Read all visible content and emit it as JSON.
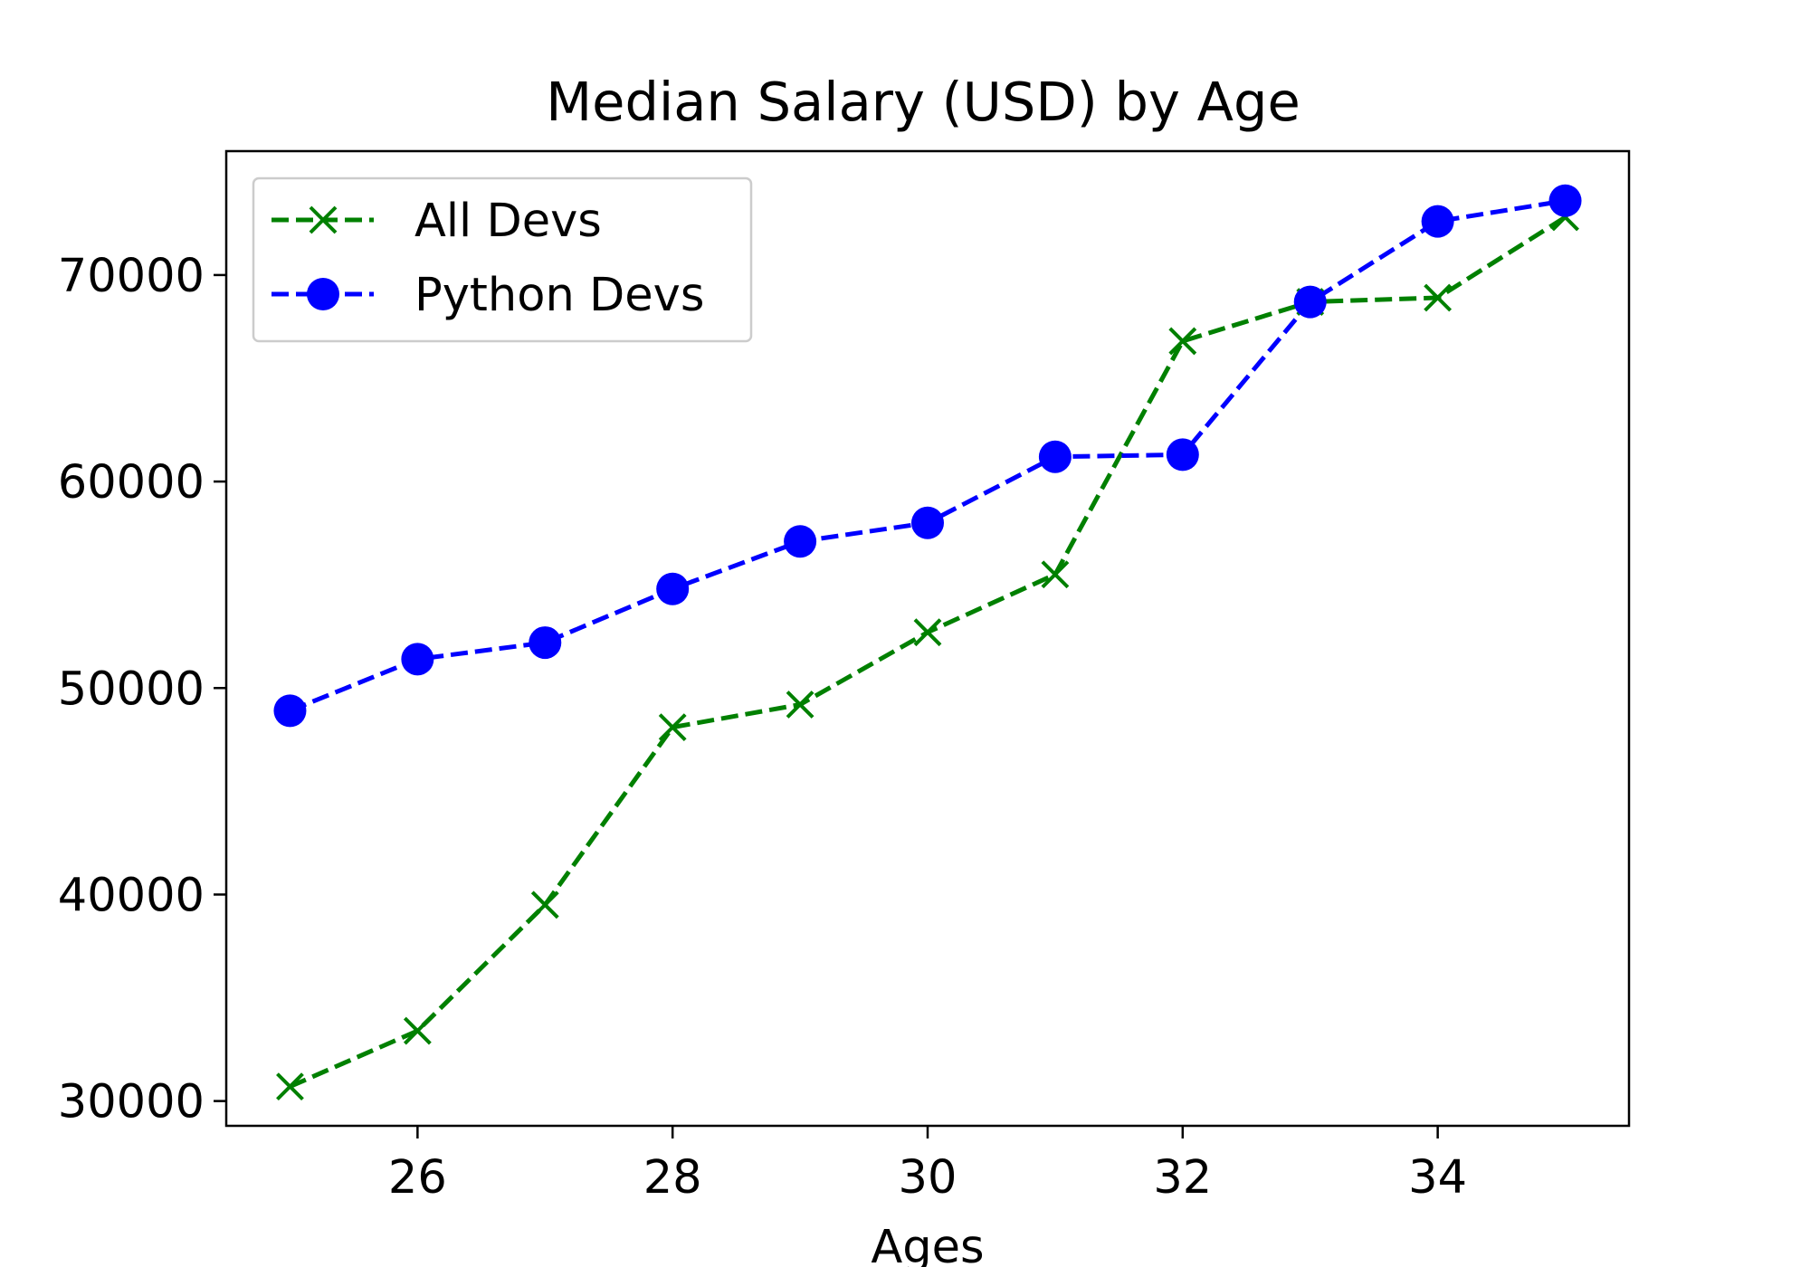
{
  "chart_data": {
    "type": "line",
    "title": "Median Salary (USD) by Age",
    "xlabel": "Ages",
    "ylabel": "",
    "x": [
      25,
      26,
      27,
      28,
      29,
      30,
      31,
      32,
      33,
      34,
      35
    ],
    "xticks": [
      26,
      28,
      30,
      32,
      34
    ],
    "yticks": [
      30000,
      40000,
      50000,
      60000,
      70000
    ],
    "xlim": [
      24.5,
      35.5
    ],
    "ylim": [
      28800,
      76000
    ],
    "grid": false,
    "legend_position": "upper-left",
    "series": [
      {
        "name": "All Devs",
        "color": "#008000",
        "marker": "x",
        "line_style": "dashed",
        "values": [
          30700,
          33400,
          39500,
          48100,
          49200,
          52700,
          55500,
          66800,
          68700,
          68900,
          72800
        ]
      },
      {
        "name": "Python Devs",
        "color": "#0000ff",
        "marker": "circle",
        "line_style": "dashed",
        "values": [
          48900,
          51400,
          52200,
          54800,
          57100,
          58000,
          61200,
          61300,
          68700,
          72600,
          73600
        ]
      }
    ]
  }
}
